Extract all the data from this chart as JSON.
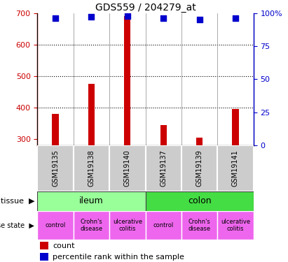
{
  "title": "GDS559 / 204279_at",
  "samples": [
    "GSM19135",
    "GSM19138",
    "GSM19140",
    "GSM19137",
    "GSM19139",
    "GSM19141"
  ],
  "counts": [
    380,
    475,
    690,
    345,
    305,
    395
  ],
  "percentiles": [
    96,
    97,
    98,
    96,
    95,
    96
  ],
  "ylim_left": [
    280,
    700
  ],
  "ylim_right": [
    0,
    100
  ],
  "yticks_left": [
    300,
    400,
    500,
    600,
    700
  ],
  "yticks_right": [
    0,
    25,
    50,
    75,
    100
  ],
  "bar_color": "#cc0000",
  "dot_color": "#0000cc",
  "tissue_labels": [
    "ileum",
    "colon"
  ],
  "tissue_colors": [
    "#99ff99",
    "#44dd44"
  ],
  "disease_labels": [
    "control",
    "Crohn's\ndisease",
    "ulcerative\ncolitis",
    "control",
    "Crohn's\ndisease",
    "ulcerative\ncolitis"
  ],
  "disease_color": "#ee66ee",
  "sample_bg_color": "#cccccc",
  "ax_left_color": "#cc0000",
  "ax_right_color": "#0000cc",
  "bar_width": 0.18,
  "dot_size": 30,
  "fig_width": 4.11,
  "fig_height": 3.75,
  "dpi": 100
}
